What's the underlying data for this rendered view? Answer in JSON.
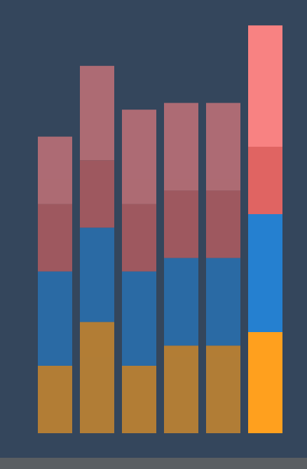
{
  "background_color": "#34465c",
  "footer_color": "#5a5e62",
  "chart_data": {
    "type": "bar",
    "stacked": true,
    "categories": [
      "",
      "",
      "",
      "",
      "",
      ""
    ],
    "series": [
      {
        "values": [
          4,
          6.6,
          4,
          5.2,
          5.2,
          6
        ],
        "color": "#ffa01e"
      },
      {
        "values": [
          5.6,
          5.6,
          5.6,
          5.2,
          5.2,
          7
        ],
        "color": "#2580d0"
      },
      {
        "values": [
          4,
          4,
          4,
          4,
          4,
          4
        ],
        "color": "#e06462"
      },
      {
        "values": [
          4,
          5.6,
          5.6,
          5.2,
          5.2,
          7.2
        ],
        "color": "#f88282"
      }
    ],
    "highlighted_index": 5,
    "dimmed_opacity": 0.62,
    "ylim": [
      0,
      25
    ],
    "grid": false,
    "legend": "none",
    "title": "",
    "xlabel": "",
    "ylabel": ""
  }
}
